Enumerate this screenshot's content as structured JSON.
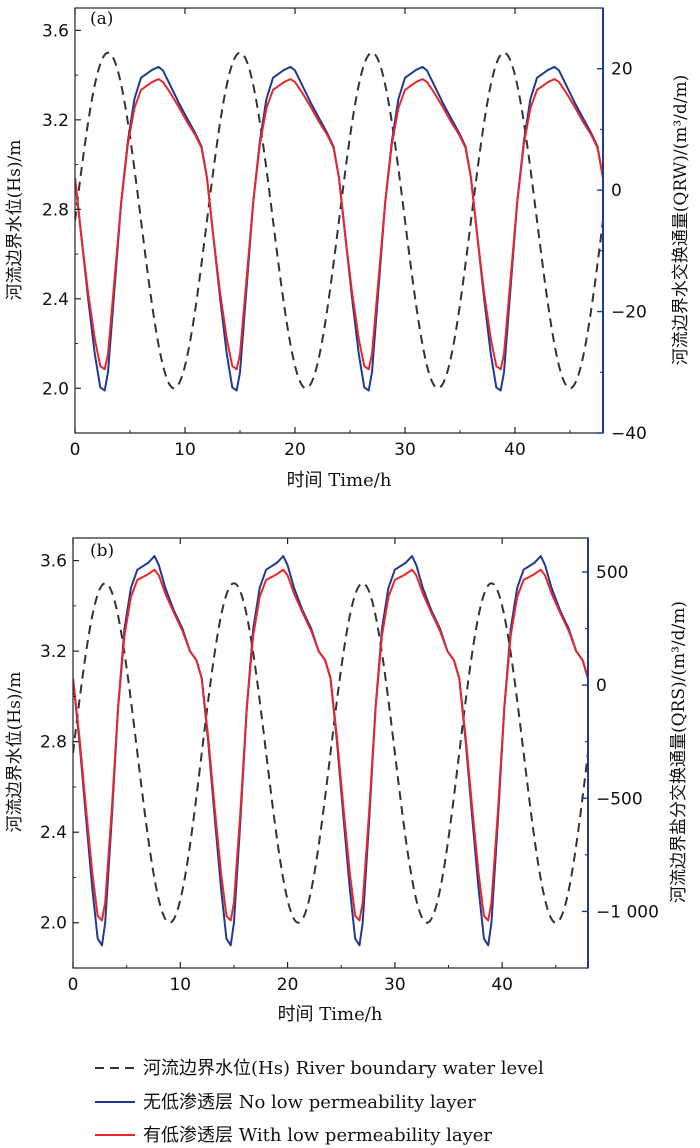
{
  "colors": {
    "river_level": "#333333",
    "no_low_perm": "#1f3a93",
    "with_low_perm": "#e8272c",
    "right_axis": "#1f3a93"
  },
  "chart_data": [
    {
      "type": "line",
      "panel_label": "(a)",
      "xlabel": "时间 Time/h",
      "ylabel_left": "河流边界水位(Hs)/m",
      "ylabel_right": "河流边界水交换通量(QRW)/(m³/d/m)",
      "xlim": [
        0,
        48
      ],
      "ylim_left": [
        1.8,
        3.7
      ],
      "ylim_right": [
        -40,
        30
      ],
      "x_ticks": [
        0,
        10,
        20,
        30,
        40
      ],
      "x_tick_labels": [
        "0",
        "10",
        "20",
        "30",
        "40"
      ],
      "y_left_ticks": [
        2.0,
        2.4,
        2.8,
        3.2,
        3.6
      ],
      "y_left_tick_labels": [
        "2.0",
        "2.4",
        "2.8",
        "3.2",
        "3.6"
      ],
      "y_right_ticks": [
        -40,
        -20,
        0,
        20
      ],
      "y_right_tick_labels": [
        "−40",
        "−20",
        "0",
        "20"
      ],
      "river_level": {
        "min": 2.0,
        "max": 3.5,
        "period_h": 12,
        "trough_t": [
          9,
          21,
          33,
          45
        ]
      },
      "flux_series": [
        {
          "name": "无低渗透层 No low permeability layer",
          "points": [
            [
              0,
              2.0
            ],
            [
              0.6,
              -8
            ],
            [
              1.2,
              -18
            ],
            [
              1.8,
              -27
            ],
            [
              2.3,
              -32.5
            ],
            [
              2.7,
              -33
            ],
            [
              3.0,
              -30
            ],
            [
              3.6,
              -16
            ],
            [
              4.2,
              -2
            ],
            [
              4.8,
              8
            ],
            [
              5.4,
              15
            ],
            [
              6.0,
              18.5
            ],
            [
              7.0,
              19.8
            ],
            [
              7.6,
              20.3
            ],
            [
              8.0,
              19.7
            ],
            [
              8.6,
              17.5
            ],
            [
              9.4,
              14.5
            ],
            [
              10.2,
              11.8
            ],
            [
              10.9,
              9.5
            ],
            [
              11.5,
              7.2
            ],
            [
              12,
              2.0
            ]
          ],
          "tile_period_h": 12
        },
        {
          "name": "有低渗透层 With low permeability layer",
          "points": [
            [
              0,
              2.0
            ],
            [
              0.6,
              -8
            ],
            [
              1.2,
              -17
            ],
            [
              1.8,
              -24.5
            ],
            [
              2.3,
              -29
            ],
            [
              2.7,
              -29.5
            ],
            [
              3.0,
              -27
            ],
            [
              3.6,
              -14.5
            ],
            [
              4.2,
              -2
            ],
            [
              4.8,
              7.5
            ],
            [
              5.4,
              13.5
            ],
            [
              6.0,
              16.5
            ],
            [
              7.0,
              17.8
            ],
            [
              7.6,
              18.3
            ],
            [
              8.0,
              17.8
            ],
            [
              8.6,
              16.2
            ],
            [
              9.4,
              13.8
            ],
            [
              10.2,
              11.2
            ],
            [
              10.9,
              9.2
            ],
            [
              11.5,
              7.0
            ],
            [
              12,
              2.0
            ]
          ],
          "tile_period_h": 12
        }
      ]
    },
    {
      "type": "line",
      "panel_label": "(b)",
      "xlabel": "时间 Time/h",
      "ylabel_left": "河流边界水位(Hs)/m",
      "ylabel_right": "河流边界盐分交换通量(QRS)/(m³/d/m)",
      "xlim": [
        0,
        48
      ],
      "ylim_left": [
        1.8,
        3.7
      ],
      "ylim_right": [
        -1250,
        650
      ],
      "x_ticks": [
        0,
        10,
        20,
        30,
        40
      ],
      "x_tick_labels": [
        "0",
        "10",
        "20",
        "30",
        "40"
      ],
      "y_left_ticks": [
        2.0,
        2.4,
        2.8,
        3.2,
        3.6
      ],
      "y_left_tick_labels": [
        "2.0",
        "2.4",
        "2.8",
        "3.2",
        "3.6"
      ],
      "y_right_ticks": [
        -1000,
        -500,
        0,
        500
      ],
      "y_right_tick_labels": [
        "−1 000",
        "−500",
        "0",
        "500"
      ],
      "river_level": {
        "min": 2.0,
        "max": 3.5,
        "period_h": 12,
        "trough_t": [
          9,
          21,
          33,
          45
        ]
      },
      "flux_series": [
        {
          "name": "无低渗透层 No low permeability layer",
          "points": [
            [
              0,
              30
            ],
            [
              0.6,
              -250
            ],
            [
              1.2,
              -580
            ],
            [
              1.8,
              -900
            ],
            [
              2.3,
              -1120
            ],
            [
              2.7,
              -1150
            ],
            [
              3.0,
              -1050
            ],
            [
              3.6,
              -600
            ],
            [
              4.2,
              -100
            ],
            [
              4.8,
              250
            ],
            [
              5.4,
              430
            ],
            [
              6.0,
              510
            ],
            [
              7.0,
              540
            ],
            [
              7.6,
              570
            ],
            [
              8.0,
              530
            ],
            [
              8.6,
              430
            ],
            [
              9.4,
              330
            ],
            [
              10.2,
              250
            ],
            [
              10.9,
              150
            ],
            [
              11.5,
              110
            ],
            [
              12,
              30
            ]
          ],
          "tile_period_h": 12
        },
        {
          "name": "有低渗透层 With low permeability layer",
          "points": [
            [
              0,
              30
            ],
            [
              0.6,
              -230
            ],
            [
              1.2,
              -540
            ],
            [
              1.8,
              -830
            ],
            [
              2.3,
              -1020
            ],
            [
              2.7,
              -1040
            ],
            [
              3.0,
              -960
            ],
            [
              3.6,
              -560
            ],
            [
              4.2,
              -100
            ],
            [
              4.8,
              220
            ],
            [
              5.4,
              390
            ],
            [
              6.0,
              465
            ],
            [
              7.0,
              490
            ],
            [
              7.6,
              510
            ],
            [
              8.0,
              485
            ],
            [
              8.6,
              405
            ],
            [
              9.4,
              320
            ],
            [
              10.2,
              240
            ],
            [
              10.9,
              150
            ],
            [
              11.5,
              110
            ],
            [
              12,
              30
            ]
          ],
          "tile_period_h": 12
        }
      ]
    }
  ],
  "legend": [
    {
      "key": "river",
      "style": "dashed",
      "text": "河流边界水位(Hs) River boundary water level"
    },
    {
      "key": "no_low",
      "style": "solid",
      "text": "无低渗透层 No low permeability layer"
    },
    {
      "key": "with_low",
      "style": "solid",
      "text": "有低渗透层 With low permeability layer"
    }
  ]
}
